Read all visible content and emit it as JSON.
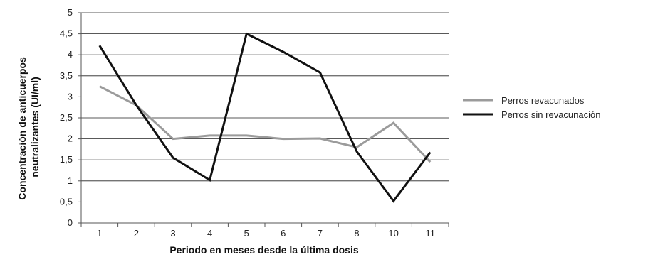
{
  "chart_data": {
    "type": "line",
    "categories": [
      "1",
      "2",
      "3",
      "4",
      "5",
      "6",
      "7",
      "8",
      "10",
      "11"
    ],
    "series": [
      {
        "name": "Perros revacunados",
        "color": "#9b9b9b",
        "values": [
          3.25,
          2.8,
          2.0,
          2.08,
          2.08,
          2.0,
          2.01,
          1.8,
          2.38,
          1.45
        ]
      },
      {
        "name": "Perros sin revacunación",
        "color": "#111111",
        "values": [
          4.22,
          2.8,
          1.55,
          1.02,
          4.5,
          4.07,
          3.58,
          1.7,
          0.52,
          1.68
        ]
      }
    ],
    "xlabel": "Periodo en meses desde la última dosis",
    "ylabel": [
      "Concentración de anticuerpos",
      "neutralizantes (UI/ml)"
    ],
    "ylim": [
      0,
      5
    ],
    "yticks": [
      "0",
      "0,5",
      "1",
      "1,5",
      "2",
      "2,5",
      "3",
      "3,5",
      "4",
      "4,5",
      "5"
    ],
    "grid": true,
    "legend": "right"
  }
}
